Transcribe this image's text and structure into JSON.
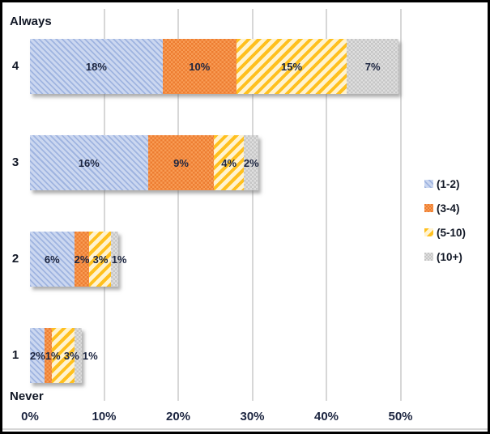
{
  "chart_data": {
    "type": "bar",
    "orientation": "horizontal_stacked",
    "categories": [
      "4",
      "3",
      "2",
      "1"
    ],
    "category_axis_top_label": "Always",
    "category_axis_bottom_label": "Never",
    "series": [
      {
        "name": "(1-2)",
        "pattern": "diagonal-stripes-down",
        "base_color": "#CBD7F0",
        "accent_color": "#9FB4E0",
        "values": [
          18,
          16,
          6,
          2
        ]
      },
      {
        "name": "(3-4)",
        "pattern": "checker-dots",
        "base_color": "#ED7D31",
        "accent_color": "#F89C55",
        "values": [
          10,
          9,
          2,
          1
        ]
      },
      {
        "name": "(5-10)",
        "pattern": "diagonal-stripes-up",
        "base_color": "#FFF3D0",
        "accent_color": "#FFC01E",
        "values": [
          15,
          4,
          3,
          3
        ]
      },
      {
        "name": "(10+)",
        "pattern": "checker-dots",
        "base_color": "#C6C6C6",
        "accent_color": "#DFDFDF",
        "values": [
          7,
          2,
          1,
          1
        ]
      }
    ],
    "data_labels": [
      [
        "18%",
        "10%",
        "15%",
        "7%"
      ],
      [
        "16%",
        "9%",
        "4%",
        "2%"
      ],
      [
        "6%",
        "2%",
        "3%",
        "1%"
      ],
      [
        "2%",
        "1%",
        "3%",
        "1%"
      ]
    ],
    "x_axis": {
      "ticks": [
        "0%",
        "10%",
        "20%",
        "30%",
        "40%",
        "50%"
      ],
      "min": 0,
      "max": 50,
      "gridlines": true
    },
    "legend": {
      "position": "right",
      "entries": [
        "(1-2)",
        "(3-4)",
        "(5-10)",
        "(10+)"
      ]
    },
    "gridline_color": "#D7D7D7",
    "text_color": "#1c2540"
  }
}
